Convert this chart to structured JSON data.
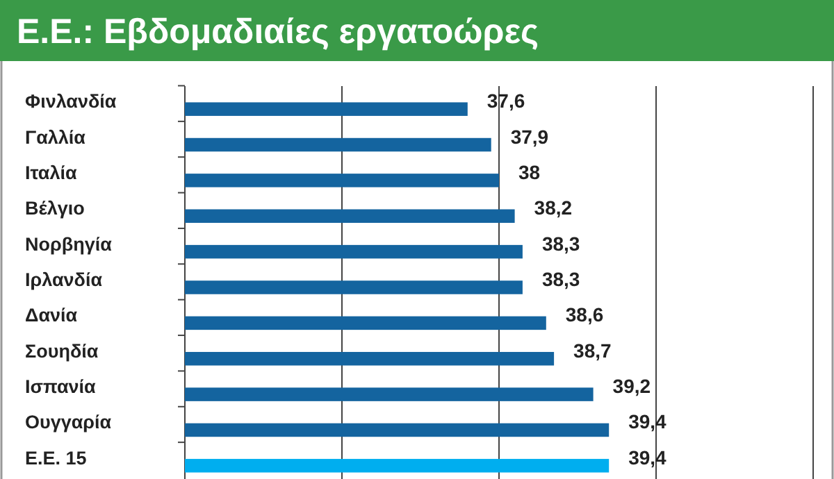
{
  "chart_data": {
    "type": "bar",
    "orientation": "horizontal",
    "title": "Ε.Ε.: Εβδομαδιαίες εργατοώρες",
    "categories": [
      "Φινλανδία",
      "Γαλλία",
      "Ιταλία",
      "Βέλγιο",
      "Νορβηγία",
      "Ιρλανδία",
      "Δανία",
      "Σουηδία",
      "Ισπανία",
      "Ουγγαρία",
      "Ε.Ε. 15"
    ],
    "values": [
      37.6,
      37.9,
      38,
      38.2,
      38.3,
      38.3,
      38.6,
      38.7,
      39.2,
      39.4,
      39.4
    ],
    "colors": [
      "#14649f",
      "#14649f",
      "#14649f",
      "#14649f",
      "#14649f",
      "#14649f",
      "#14649f",
      "#14649f",
      "#14649f",
      "#14649f",
      "#00aeef"
    ],
    "value_labels": [
      "37,6",
      "37,9",
      "38",
      "38,2",
      "38,3",
      "38,3",
      "38,6",
      "38,7",
      "39,2",
      "39,4",
      "39,4"
    ],
    "xlim": [
      34,
      42
    ],
    "xticks": [
      {
        "value": 34,
        "label": null
      },
      {
        "value": 36,
        "label": null
      },
      {
        "value": 38,
        "label": null
      },
      {
        "value": 40,
        "label": null
      },
      {
        "value": 42,
        "label": null
      }
    ],
    "grid": "x",
    "tick_labels": "y"
  }
}
